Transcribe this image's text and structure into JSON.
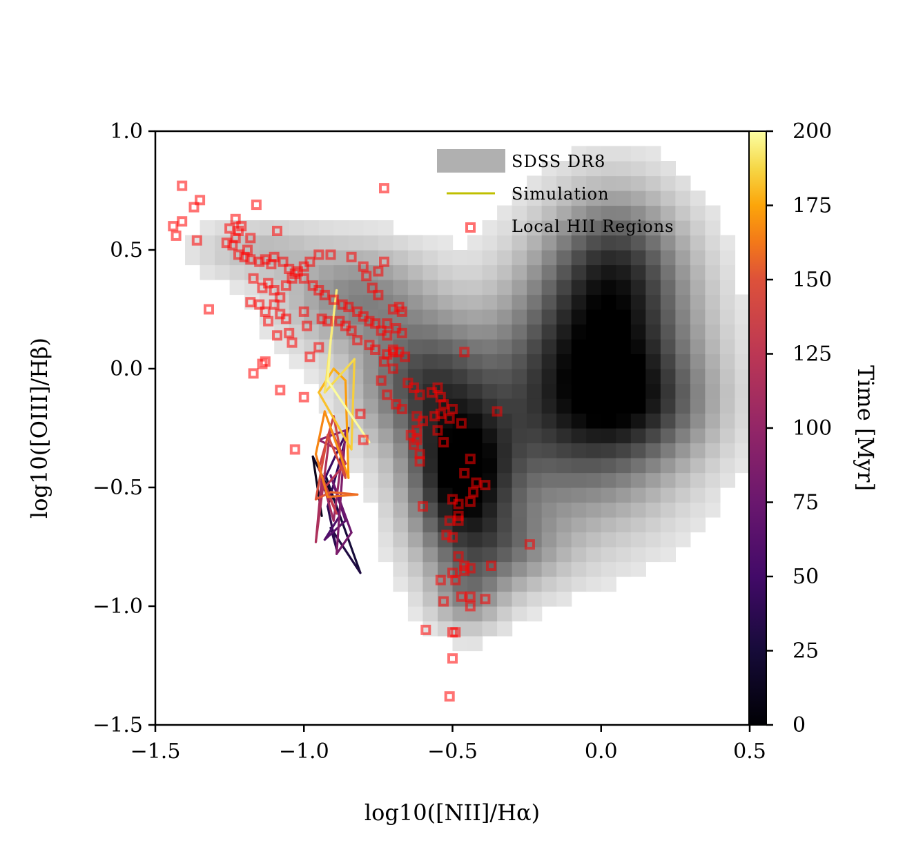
{
  "chart_data": {
    "type": "scatter",
    "title": "",
    "xlabel": "log10([NII]/Hα)",
    "ylabel": "log10([OIII]/Hβ)",
    "xlim": [
      -1.5,
      0.5
    ],
    "ylim": [
      -1.5,
      1.0
    ],
    "xticks": [
      -1.5,
      -1.0,
      -0.5,
      0.0,
      0.5
    ],
    "yticks": [
      -1.5,
      -1.0,
      -0.5,
      0.0,
      0.5,
      1.0
    ],
    "x_tick_labels": [
      "−1.5",
      "−1.0",
      "−0.5",
      "0.0",
      "0.5"
    ],
    "y_tick_labels": [
      "−1.5",
      "−1.0",
      "−0.5",
      "0.0",
      "0.5",
      "1.0"
    ],
    "legend": {
      "position": "top-right",
      "entries": [
        "SDSS DR8",
        "Simulation",
        "Local HII Regions"
      ]
    },
    "colorbar": {
      "label": "Time [Myr]",
      "range": [
        0,
        200
      ],
      "ticks": [
        0,
        25,
        50,
        75,
        100,
        125,
        150,
        175,
        200
      ],
      "colormap": "inferno"
    },
    "series": [
      {
        "name": "SDSS DR8",
        "kind": "2d-histogram",
        "color": "#000000",
        "components": [
          {
            "cx": -0.47,
            "cy": -0.45,
            "sx": 0.11,
            "sy": 0.2,
            "amp": 1.0
          },
          {
            "cx": -0.6,
            "cy": -0.05,
            "sx": 0.14,
            "sy": 0.18,
            "amp": 0.55
          },
          {
            "cx": -0.82,
            "cy": 0.3,
            "sx": 0.16,
            "sy": 0.14,
            "amp": 0.35
          },
          {
            "cx": -1.15,
            "cy": 0.5,
            "sx": 0.14,
            "sy": 0.08,
            "amp": 0.15
          },
          {
            "cx": -0.15,
            "cy": -0.2,
            "sx": 0.25,
            "sy": 0.3,
            "amp": 0.5
          },
          {
            "cx": 0.02,
            "cy": 0.1,
            "sx": 0.18,
            "sy": 0.3,
            "amp": 0.75
          },
          {
            "cx": 0.05,
            "cy": 0.45,
            "sx": 0.14,
            "sy": 0.2,
            "amp": 0.4
          },
          {
            "cx": -0.35,
            "cy": -0.75,
            "sx": 0.14,
            "sy": 0.12,
            "amp": 0.35
          },
          {
            "cx": 0.15,
            "cy": -0.15,
            "sx": 0.15,
            "sy": 0.15,
            "amp": 0.3
          },
          {
            "cx": -0.45,
            "cy": -0.95,
            "sx": 0.08,
            "sy": 0.1,
            "amp": 0.3
          }
        ]
      },
      {
        "name": "Simulation",
        "kind": "line",
        "legend_color": "#bfbf00",
        "points": [
          [
            -0.94,
            -0.62,
            10
          ],
          [
            -0.97,
            -0.37,
            14
          ],
          [
            -0.9,
            -0.55,
            18
          ],
          [
            -0.93,
            -0.44,
            22
          ],
          [
            -0.81,
            -0.86,
            28
          ],
          [
            -0.91,
            -0.67,
            32
          ],
          [
            -0.89,
            -0.76,
            36
          ],
          [
            -0.92,
            -0.58,
            40
          ],
          [
            -0.85,
            -0.25,
            44
          ],
          [
            -0.94,
            -0.49,
            48
          ],
          [
            -0.88,
            -0.62,
            54
          ],
          [
            -0.93,
            -0.72,
            60
          ],
          [
            -0.86,
            -0.64,
            66
          ],
          [
            -0.91,
            -0.45,
            72
          ],
          [
            -0.84,
            -0.69,
            78
          ],
          [
            -0.89,
            -0.78,
            84
          ],
          [
            -0.86,
            -0.26,
            90
          ],
          [
            -0.95,
            -0.3,
            96
          ],
          [
            -0.87,
            -0.35,
            100
          ],
          [
            -0.9,
            -0.64,
            106
          ],
          [
            -0.94,
            -0.46,
            110
          ],
          [
            -0.96,
            -0.73,
            114
          ],
          [
            -0.91,
            -0.25,
            118
          ],
          [
            -0.86,
            -0.4,
            122
          ],
          [
            -0.93,
            -0.5,
            126
          ],
          [
            -0.89,
            -0.61,
            130
          ],
          [
            -0.95,
            -0.42,
            134
          ],
          [
            -0.9,
            -0.2,
            138
          ],
          [
            -0.86,
            -0.46,
            142
          ],
          [
            -0.92,
            -0.28,
            146
          ],
          [
            -0.96,
            -0.55,
            150
          ],
          [
            -0.91,
            -0.52,
            154
          ],
          [
            -0.82,
            -0.53,
            158
          ],
          [
            -0.92,
            -0.54,
            162
          ],
          [
            -0.96,
            -0.36,
            165
          ],
          [
            -0.93,
            -0.18,
            168
          ],
          [
            -0.85,
            -0.46,
            171
          ],
          [
            -0.86,
            -0.05,
            174
          ],
          [
            -0.9,
            0.0,
            177
          ],
          [
            -0.95,
            -0.1,
            180
          ],
          [
            -0.84,
            -0.34,
            184
          ],
          [
            -0.83,
            0.04,
            187
          ],
          [
            -0.93,
            -0.1,
            190
          ],
          [
            -0.89,
            0.33,
            193
          ],
          [
            -0.91,
            0.12,
            196
          ],
          [
            -0.92,
            -0.05,
            198
          ],
          [
            -0.78,
            -0.31,
            200
          ]
        ]
      },
      {
        "name": "Local HII Regions",
        "kind": "scatter",
        "color": "#ff0000",
        "marker": "square",
        "points": [
          [
            -1.41,
            0.77
          ],
          [
            -1.44,
            0.6
          ],
          [
            -1.43,
            0.56
          ],
          [
            -1.41,
            0.62
          ],
          [
            -1.37,
            0.68
          ],
          [
            -1.35,
            0.71
          ],
          [
            -1.36,
            0.54
          ],
          [
            -1.32,
            0.25
          ],
          [
            -1.25,
            0.59
          ],
          [
            -1.23,
            0.63
          ],
          [
            -1.22,
            0.58
          ],
          [
            -1.21,
            0.6
          ],
          [
            -1.26,
            0.53
          ],
          [
            -1.24,
            0.52
          ],
          [
            -1.23,
            0.55
          ],
          [
            -1.19,
            0.5
          ],
          [
            -1.18,
            0.55
          ],
          [
            -1.16,
            0.69
          ],
          [
            -1.22,
            0.48
          ],
          [
            -1.2,
            0.47
          ],
          [
            -1.18,
            0.46
          ],
          [
            -1.15,
            0.45
          ],
          [
            -1.13,
            0.46
          ],
          [
            -1.11,
            0.44
          ],
          [
            -1.09,
            0.58
          ],
          [
            -1.1,
            0.47
          ],
          [
            -1.07,
            0.45
          ],
          [
            -1.05,
            0.42
          ],
          [
            -1.03,
            0.4
          ],
          [
            -1.0,
            0.38
          ],
          [
            -0.97,
            0.35
          ],
          [
            -0.95,
            0.33
          ],
          [
            -0.93,
            0.31
          ],
          [
            -0.9,
            0.29
          ],
          [
            -0.87,
            0.27
          ],
          [
            -0.85,
            0.26
          ],
          [
            -0.82,
            0.24
          ],
          [
            -0.8,
            0.22
          ],
          [
            -0.78,
            0.2
          ],
          [
            -0.76,
            0.19
          ],
          [
            -0.74,
            0.16
          ],
          [
            -0.72,
            0.14
          ],
          [
            -1.12,
            0.36
          ],
          [
            -1.1,
            0.33
          ],
          [
            -1.08,
            0.3
          ],
          [
            -1.06,
            0.35
          ],
          [
            -1.04,
            0.38
          ],
          [
            -1.02,
            0.41
          ],
          [
            -1.0,
            0.43
          ],
          [
            -0.98,
            0.45
          ],
          [
            -0.95,
            0.48
          ],
          [
            -0.91,
            0.48
          ],
          [
            -0.84,
            0.47
          ],
          [
            -0.8,
            0.43
          ],
          [
            -0.79,
            0.39
          ],
          [
            -0.77,
            0.34
          ],
          [
            -0.75,
            0.31
          ],
          [
            -0.73,
            0.76
          ],
          [
            -0.73,
            0.45
          ],
          [
            -0.75,
            0.41
          ],
          [
            -1.17,
            0.38
          ],
          [
            -1.14,
            0.34
          ],
          [
            -1.18,
            0.28
          ],
          [
            -1.15,
            0.27
          ],
          [
            -1.13,
            0.24
          ],
          [
            -1.1,
            0.27
          ],
          [
            -1.08,
            0.23
          ],
          [
            -1.06,
            0.21
          ],
          [
            -1.12,
            0.2
          ],
          [
            -1.09,
            0.14
          ],
          [
            -1.05,
            0.15
          ],
          [
            -1.04,
            0.11
          ],
          [
            -1.0,
            0.24
          ],
          [
            -0.99,
            0.18
          ],
          [
            -0.98,
            0.05
          ],
          [
            -0.95,
            0.09
          ],
          [
            -0.94,
            0.21
          ],
          [
            -0.92,
            0.2
          ],
          [
            -0.88,
            0.2
          ],
          [
            -0.86,
            0.18
          ],
          [
            -0.84,
            0.16
          ],
          [
            -0.82,
            0.12
          ],
          [
            -0.78,
            0.1
          ],
          [
            -0.76,
            0.08
          ],
          [
            -0.72,
            0.19
          ],
          [
            -0.7,
            0.25
          ],
          [
            -0.68,
            0.26
          ],
          [
            -0.67,
            0.24
          ],
          [
            -0.69,
            0.17
          ],
          [
            -0.67,
            0.15
          ],
          [
            -0.7,
            0.08
          ],
          [
            -0.72,
            0.06
          ],
          [
            -0.73,
            0.03
          ],
          [
            -0.7,
            0.07
          ],
          [
            -0.68,
            0.07
          ],
          [
            -0.66,
            0.05
          ],
          [
            -1.17,
            -0.02
          ],
          [
            -1.14,
            0.02
          ],
          [
            -1.13,
            0.03
          ],
          [
            -1.08,
            -0.09
          ],
          [
            -1.0,
            -0.12
          ],
          [
            -1.03,
            -0.34
          ],
          [
            -0.8,
            -0.3
          ],
          [
            -0.81,
            -0.19
          ],
          [
            -0.74,
            -0.05
          ],
          [
            -0.72,
            -0.11
          ],
          [
            -0.7,
            0.0
          ],
          [
            -0.65,
            -0.06
          ],
          [
            -0.69,
            -0.15
          ],
          [
            -0.67,
            -0.17
          ],
          [
            -0.63,
            -0.08
          ],
          [
            -0.61,
            -0.11
          ],
          [
            -0.62,
            -0.2
          ],
          [
            -0.6,
            -0.22
          ],
          [
            -0.57,
            -0.1
          ],
          [
            -0.55,
            -0.08
          ],
          [
            -0.54,
            -0.12
          ],
          [
            -0.53,
            -0.15
          ],
          [
            -0.5,
            -0.17
          ],
          [
            -0.47,
            -0.23
          ],
          [
            -0.46,
            0.07
          ],
          [
            -0.44,
            -0.38
          ],
          [
            -0.46,
            -0.44
          ],
          [
            -0.42,
            -0.48
          ],
          [
            -0.39,
            -0.49
          ],
          [
            -0.43,
            -0.52
          ],
          [
            -0.44,
            -0.56
          ],
          [
            -0.35,
            -0.18
          ],
          [
            -0.24,
            -0.74
          ],
          [
            -0.64,
            -0.28
          ],
          [
            -0.62,
            -0.3
          ],
          [
            -0.63,
            -0.32
          ],
          [
            -0.61,
            -0.36
          ],
          [
            -0.61,
            -0.39
          ],
          [
            -0.54,
            -0.19
          ],
          [
            -0.56,
            -0.2
          ],
          [
            -0.51,
            -0.21
          ],
          [
            -0.55,
            -0.26
          ],
          [
            -0.53,
            -0.31
          ],
          [
            -0.5,
            -0.55
          ],
          [
            -0.48,
            -0.57
          ],
          [
            -0.48,
            -0.62
          ],
          [
            -0.51,
            -0.64
          ],
          [
            -0.48,
            -0.64
          ],
          [
            -0.52,
            -0.7
          ],
          [
            -0.5,
            -0.71
          ],
          [
            -0.48,
            -0.79
          ],
          [
            -0.46,
            -0.83
          ],
          [
            -0.44,
            -0.84
          ],
          [
            -0.46,
            -0.85
          ],
          [
            -0.5,
            -0.86
          ],
          [
            -0.49,
            -0.89
          ],
          [
            -0.44,
            -0.96
          ],
          [
            -0.47,
            -0.96
          ],
          [
            -0.44,
            -1.0
          ],
          [
            -0.39,
            -0.97
          ],
          [
            -0.37,
            -0.83
          ],
          [
            -0.54,
            -0.89
          ],
          [
            -0.53,
            -0.98
          ],
          [
            -0.59,
            -1.1
          ],
          [
            -0.5,
            -1.11
          ],
          [
            -0.49,
            -1.11
          ],
          [
            -0.5,
            -1.22
          ],
          [
            -0.51,
            -1.38
          ],
          [
            -0.6,
            -0.58
          ],
          [
            -0.62,
            -0.26
          ]
        ]
      }
    ]
  }
}
